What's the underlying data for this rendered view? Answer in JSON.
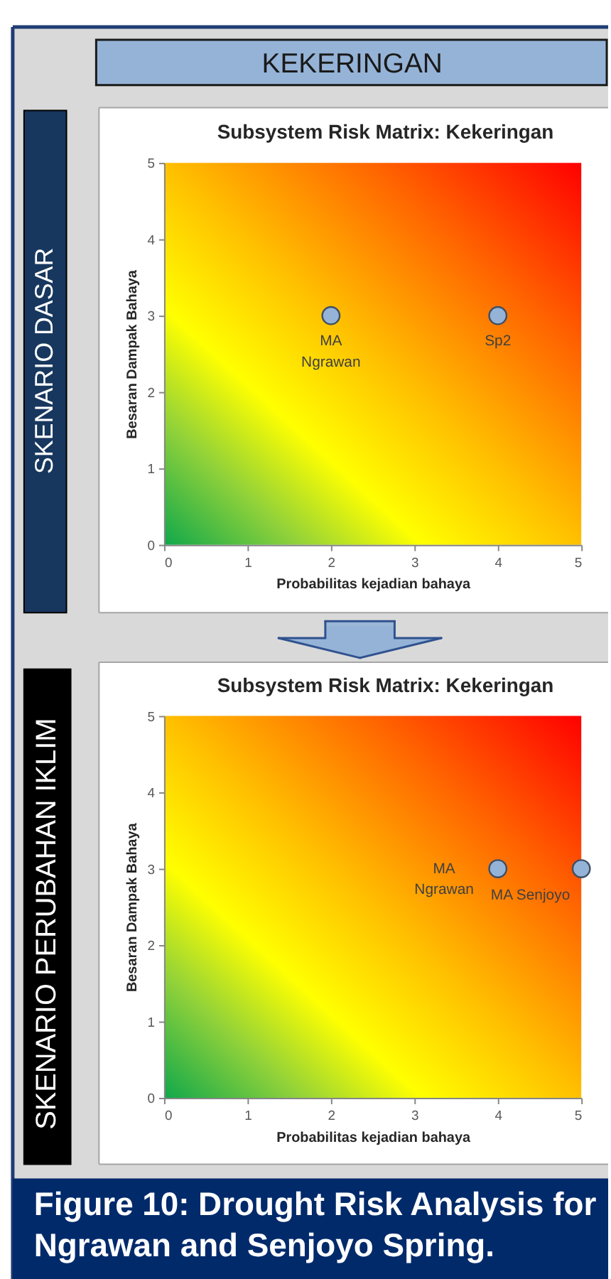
{
  "chart_data": [
    {
      "type": "scatter",
      "title": "Subsystem Risk Matrix: Kekeringan",
      "xlabel": "Probabilitas kejadian bahaya",
      "ylabel": "Besaran Dampak Bahaya",
      "x": [
        2,
        4
      ],
      "values": [
        3,
        3
      ],
      "color": "#95b3d7",
      "marker": "circle",
      "xlim": [
        0,
        5
      ],
      "ylim": [
        0,
        5
      ],
      "xticks": [
        0,
        1,
        2,
        3,
        4,
        5
      ],
      "yticks": [
        0,
        1,
        2,
        3,
        4,
        5
      ],
      "annotations": [
        "KEKERINGAN",
        "SKENARIO DASAR",
        {
          "text": "MA Ngrawan",
          "x": 2,
          "y": 3
        },
        {
          "text": "Sp2",
          "x": 4,
          "y": 3
        }
      ]
    },
    {
      "type": "scatter",
      "title": "Subsystem Risk Matrix: Kekeringan",
      "xlabel": "Probabilitas kejadian bahaya",
      "ylabel": "Besaran Dampak Bahaya",
      "x": [
        4,
        5
      ],
      "values": [
        3,
        3
      ],
      "color": "#95b3d7",
      "marker": "circle",
      "xlim": [
        0,
        5
      ],
      "ylim": [
        0,
        5
      ],
      "xticks": [
        0,
        1,
        2,
        3,
        4,
        5
      ],
      "yticks": [
        0,
        1,
        2,
        3,
        4,
        5
      ],
      "annotations": [
        "SKENARIO PERUBAHAN IKLIM",
        {
          "text": "MA Ngrawan",
          "x": 4,
          "y": 3
        },
        {
          "text": "MA Senjoyo",
          "x": 5,
          "y": 3
        },
        "Figure 10: Drought Risk Analysis for Ngrawan and Senjoyo Spring."
      ]
    }
  ]
}
